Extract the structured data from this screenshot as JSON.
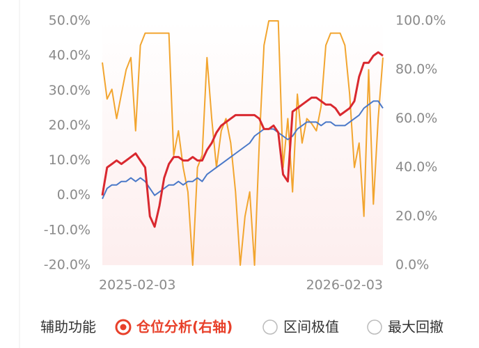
{
  "chart_data": {
    "type": "line",
    "x": [
      "2025-02-03",
      null,
      null,
      null,
      null,
      null,
      null,
      null,
      null,
      null,
      null,
      null,
      null,
      null,
      null,
      null,
      null,
      null,
      null,
      null,
      null,
      null,
      null,
      null,
      null,
      null,
      null,
      null,
      null,
      null,
      null,
      null,
      null,
      null,
      null,
      null,
      null,
      null,
      null,
      null,
      null,
      null,
      null,
      null,
      null,
      null,
      null,
      null,
      null,
      null,
      null,
      null,
      null,
      null,
      null,
      null,
      null,
      null,
      null,
      "2026-02-03"
    ],
    "ylim": [
      -20,
      50
    ],
    "yticks": [
      {
        "value": -20,
        "label": "-20.0%"
      },
      {
        "value": -10,
        "label": "-10.0%"
      },
      {
        "value": 0,
        "label": "0.0%"
      },
      {
        "value": 10,
        "label": "10.0%"
      },
      {
        "value": 20,
        "label": "20.0%"
      },
      {
        "value": 30,
        "label": "30.0%"
      },
      {
        "value": 40,
        "label": "40.0%"
      },
      {
        "value": 50,
        "label": "50.0%"
      }
    ],
    "y2lim": [
      0,
      100
    ],
    "y2ticks": [
      {
        "value": 0,
        "label": "0.0%"
      },
      {
        "value": 20,
        "label": "20.0%"
      },
      {
        "value": 40,
        "label": "40.0%"
      },
      {
        "value": 60,
        "label": "60.0%"
      },
      {
        "value": 80,
        "label": "80.0%"
      },
      {
        "value": 100,
        "label": "100.0%"
      }
    ],
    "series": [
      {
        "color": "#f2a52f",
        "axis": "y2",
        "values": [
          83,
          68,
          72,
          60,
          70,
          80,
          85,
          55,
          90,
          95,
          95,
          95,
          95,
          95,
          95,
          45,
          55,
          40,
          30,
          0,
          40,
          45,
          85,
          60,
          40,
          55,
          60,
          50,
          30,
          0,
          20,
          30,
          0,
          50,
          90,
          100,
          100,
          100,
          40,
          60,
          30,
          70,
          50,
          60,
          58,
          55,
          65,
          90,
          95,
          95,
          95,
          90,
          70,
          40,
          50,
          20,
          80,
          25,
          60,
          85
        ]
      },
      {
        "color": "#4a78c8",
        "values": [
          -1,
          2,
          3,
          3,
          4,
          4,
          5,
          4,
          5,
          4,
          2,
          0,
          1,
          2,
          3,
          3,
          4,
          3,
          4,
          4,
          5,
          4,
          6,
          7,
          8,
          9,
          10,
          11,
          12,
          13,
          14,
          15,
          17,
          18,
          19,
          19,
          19,
          18,
          17,
          16,
          17,
          19,
          20,
          21,
          21,
          21,
          20,
          21,
          21,
          20,
          20,
          20,
          21,
          22,
          23,
          25,
          26,
          27,
          27,
          25
        ]
      },
      {
        "color": "#d9282f",
        "values": [
          0,
          8,
          9,
          10,
          9,
          10,
          11,
          12,
          10,
          8,
          -6,
          -9,
          -3,
          5,
          9,
          11,
          11,
          10,
          10,
          11,
          10,
          10,
          13,
          15,
          18,
          20,
          21,
          22,
          23,
          23,
          23,
          23,
          23,
          22,
          19,
          19,
          20,
          18,
          6,
          4,
          24,
          25,
          26,
          27,
          28,
          28,
          27,
          26,
          26,
          25,
          23,
          24,
          25,
          27,
          34,
          38,
          38,
          40,
          41,
          40
        ]
      }
    ]
  },
  "controls": {
    "label": "辅助功能",
    "options": [
      "仓位分析(右轴)",
      "区间极值",
      "最大回撤"
    ],
    "selected": 0,
    "accent": "#e8402a"
  }
}
